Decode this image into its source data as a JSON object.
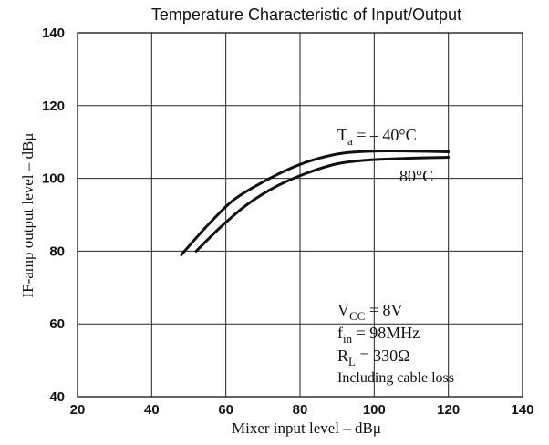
{
  "chart_data": {
    "type": "line",
    "title": "Temperature Characteristic of Input/Output",
    "xlabel": "Mixer input level  –  dBμ",
    "ylabel": "IF-amp output level  –  dBμ",
    "xlim": [
      20,
      140
    ],
    "ylim": [
      40,
      140
    ],
    "x_ticks": [
      "20",
      "40",
      "60",
      "80",
      "100",
      "120",
      "140"
    ],
    "y_ticks": [
      "40",
      "60",
      "80",
      "100",
      "120",
      "140"
    ],
    "grid": true,
    "series": [
      {
        "name": "Ta = –40°C",
        "points": [
          [
            48,
            79
          ],
          [
            55,
            87
          ],
          [
            62,
            94
          ],
          [
            70,
            99
          ],
          [
            78,
            103
          ],
          [
            85,
            105.5
          ],
          [
            92,
            107
          ],
          [
            100,
            107.5
          ],
          [
            110,
            107.5
          ],
          [
            120,
            107.3
          ]
        ]
      },
      {
        "name": "80°C",
        "points": [
          [
            52,
            80
          ],
          [
            59,
            87
          ],
          [
            66,
            93
          ],
          [
            74,
            98
          ],
          [
            82,
            101.5
          ],
          [
            90,
            104
          ],
          [
            98,
            105
          ],
          [
            108,
            105.5
          ],
          [
            120,
            105.8
          ]
        ]
      }
    ],
    "annotations": {
      "series1_label": {
        "main": "T",
        "sub": "a",
        "rest": " = – 40°C"
      },
      "series2_label": "80°C",
      "conditions": {
        "vcc": {
          "main": "V",
          "sub": "CC",
          "rest": " = 8V"
        },
        "fin": {
          "main": "f",
          "sub": "in",
          "rest": " = 98MHz"
        },
        "rl": {
          "main": "R",
          "sub": "L",
          "rest": " = 330Ω"
        },
        "note": "Including cable loss"
      }
    }
  }
}
